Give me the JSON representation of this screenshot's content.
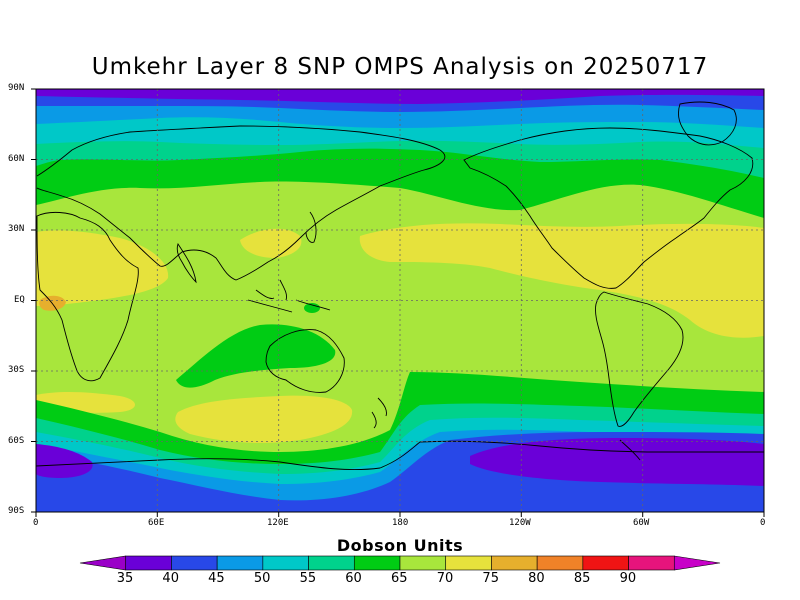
{
  "title": "Umkehr Layer 8 SNP OMPS Analysis on 20250717",
  "axes": {
    "y_ticks": [
      "90N",
      "60N",
      "30N",
      "EQ",
      "30S",
      "60S",
      "90S"
    ],
    "x_ticks": [
      "0",
      "60E",
      "120E",
      "180",
      "120W",
      "60W",
      "0"
    ]
  },
  "colorbar": {
    "label": "Dobson Units",
    "levels": [
      "35",
      "40",
      "45",
      "50",
      "55",
      "60",
      "65",
      "70",
      "75",
      "80",
      "85",
      "90"
    ],
    "colors": [
      "#9a00c8",
      "#6a00d8",
      "#2848e8",
      "#0a9ae6",
      "#00c8c8",
      "#00d28c",
      "#00cc14",
      "#a8e63c",
      "#e6e23c",
      "#e6af2d",
      "#f08228",
      "#f01414",
      "#e6147c",
      "#c800c8"
    ]
  },
  "chart_data": {
    "type": "heatmap",
    "title": "Umkehr Layer 8 SNP OMPS Analysis on 20250717",
    "xlabel": "",
    "ylabel": "",
    "xlim": [
      0,
      360
    ],
    "ylim": [
      -90,
      90
    ],
    "units": "Dobson Units",
    "contour_levels": [
      35,
      40,
      45,
      50,
      55,
      60,
      65,
      70,
      75,
      80,
      85,
      90
    ],
    "grid": true,
    "zonal_structure": [
      {
        "lat_range": [
          80,
          90
        ],
        "value_range": [
          35,
          40
        ]
      },
      {
        "lat_range": [
          70,
          80
        ],
        "value_range": [
          40,
          50
        ]
      },
      {
        "lat_range": [
          60,
          70
        ],
        "value_range": [
          50,
          60
        ]
      },
      {
        "lat_range": [
          45,
          60
        ],
        "value_range": [
          60,
          65
        ]
      },
      {
        "lat_range": [
          35,
          45
        ],
        "value_range": [
          65,
          70
        ]
      },
      {
        "lat_range": [
          15,
          35
        ],
        "value_range": [
          70,
          75
        ]
      },
      {
        "lat_range": [
          -35,
          15
        ],
        "value_range": [
          65,
          75
        ]
      },
      {
        "lat_range": [
          -50,
          -35
        ],
        "value_range": [
          65,
          75
        ]
      },
      {
        "lat_range": [
          -60,
          -50
        ],
        "value_range": [
          50,
          65
        ]
      },
      {
        "lat_range": [
          -90,
          -60
        ],
        "value_range": [
          35,
          45
        ]
      }
    ],
    "notable_features": [
      {
        "name": "equatorial maximum",
        "lon": 5,
        "lat": 0,
        "value_range": [
          75,
          80
        ]
      },
      {
        "name": "south polar minimum",
        "lon": 290,
        "lat": -72,
        "value_range": [
          35,
          40
        ]
      },
      {
        "name": "south polar minimum",
        "lon": 10,
        "lat": -68,
        "value_range": [
          35,
          40
        ]
      }
    ]
  }
}
